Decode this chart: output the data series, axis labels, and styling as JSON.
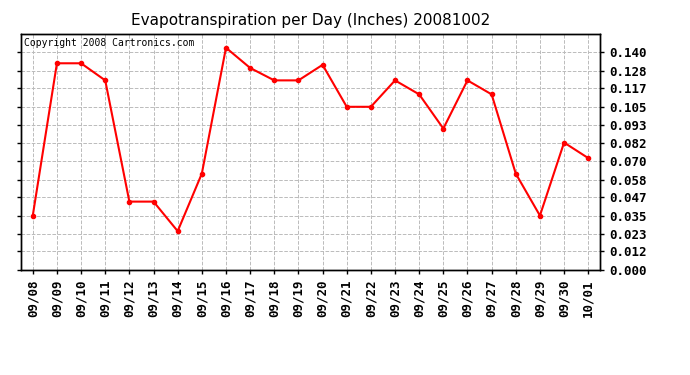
{
  "title": "Evapotranspiration per Day (Inches) 20081002",
  "copyright": "Copyright 2008 Cartronics.com",
  "labels": [
    "09/08",
    "09/09",
    "09/10",
    "09/11",
    "09/12",
    "09/13",
    "09/14",
    "09/15",
    "09/16",
    "09/17",
    "09/18",
    "09/19",
    "09/20",
    "09/21",
    "09/22",
    "09/23",
    "09/24",
    "09/25",
    "09/26",
    "09/27",
    "09/28",
    "09/29",
    "09/30",
    "10/01"
  ],
  "values": [
    0.035,
    0.133,
    0.133,
    0.122,
    0.044,
    0.044,
    0.025,
    0.062,
    0.143,
    0.13,
    0.122,
    0.122,
    0.132,
    0.105,
    0.105,
    0.122,
    0.113,
    0.091,
    0.122,
    0.113,
    0.062,
    0.035,
    0.082,
    0.072
  ],
  "line_color": "#ff0000",
  "marker": "o",
  "marker_size": 3,
  "background_color": "#ffffff",
  "plot_bg_color": "#ffffff",
  "grid_color": "#bbbbbb",
  "title_fontsize": 11,
  "copyright_fontsize": 7,
  "tick_fontsize": 9,
  "ylim": [
    0.0,
    0.152
  ],
  "yticks": [
    0.0,
    0.012,
    0.023,
    0.035,
    0.047,
    0.058,
    0.07,
    0.082,
    0.093,
    0.105,
    0.117,
    0.128,
    0.14
  ]
}
